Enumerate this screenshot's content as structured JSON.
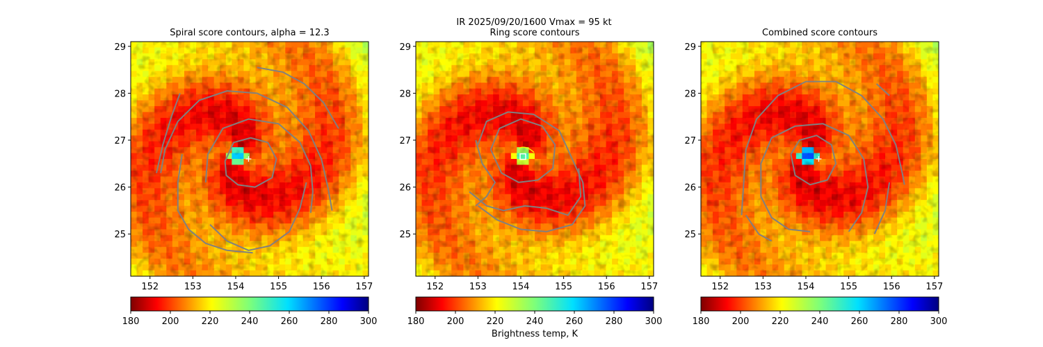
{
  "figure": {
    "suptitle_line1": "IR  2025/09/20/1600    Vmax = 95 kt",
    "colorbar_label": "Brightness temp, K"
  },
  "colors": {
    "contour": "#808080",
    "marker": "#ffffff",
    "ring_inner_contour": "#ffff00"
  },
  "chart_data": [
    {
      "type": "heatmap",
      "title": "Spiral score contours, alpha = 12.3",
      "xlim": [
        151.55,
        157.1
      ],
      "ylim": [
        24.1,
        29.1
      ],
      "xticks": [
        "152",
        "153",
        "154",
        "155",
        "156",
        "157"
      ],
      "yticks": [
        "25",
        "26",
        "27",
        "28",
        "29"
      ],
      "center_marker": {
        "symbol": "+",
        "x": 154.3,
        "y": 26.6
      },
      "eye": {
        "x": 154.05,
        "y": 26.68,
        "min_temp": 275
      },
      "contours": [
        {
          "name": "inner",
          "points": [
            [
              153.75,
              26.55
            ],
            [
              153.95,
              26.95
            ],
            [
              154.35,
              27.05
            ],
            [
              154.75,
              26.95
            ],
            [
              154.95,
              26.6
            ],
            [
              154.85,
              26.2
            ],
            [
              154.45,
              26.0
            ],
            [
              154.05,
              26.05
            ],
            [
              153.78,
              26.25
            ],
            [
              153.75,
              26.55
            ]
          ]
        },
        {
          "name": "middle",
          "points": [
            [
              153.3,
              26.1
            ],
            [
              153.35,
              26.7
            ],
            [
              153.7,
              27.25
            ],
            [
              154.3,
              27.45
            ],
            [
              155.0,
              27.35
            ],
            [
              155.5,
              26.95
            ],
            [
              155.75,
              26.45
            ],
            [
              155.8,
              25.9
            ],
            [
              155.75,
              25.45
            ]
          ]
        },
        {
          "name": "outer",
          "points": [
            [
              153.4,
              25.2
            ],
            [
              153.8,
              24.85
            ],
            [
              154.3,
              24.65
            ],
            [
              154.8,
              24.75
            ],
            [
              155.25,
              25.05
            ],
            [
              155.5,
              25.55
            ],
            [
              155.65,
              26.1
            ]
          ]
        },
        {
          "name": "big-spiral",
          "points": [
            [
              152.25,
              26.3
            ],
            [
              152.35,
              26.8
            ],
            [
              152.65,
              27.4
            ],
            [
              153.15,
              27.85
            ],
            [
              153.8,
              28.05
            ],
            [
              154.5,
              28.0
            ],
            [
              155.2,
              27.7
            ],
            [
              155.7,
              27.2
            ],
            [
              156.0,
              26.6
            ],
            [
              156.15,
              26.0
            ],
            [
              156.25,
              25.5
            ]
          ]
        },
        {
          "name": "left-arm",
          "points": [
            [
              152.75,
              26.7
            ],
            [
              152.65,
              26.1
            ],
            [
              152.65,
              25.5
            ],
            [
              152.9,
              25.1
            ],
            [
              153.3,
              24.8
            ],
            [
              153.8,
              24.65
            ],
            [
              154.4,
              24.6
            ]
          ]
        },
        {
          "name": "top-arm",
          "points": [
            [
              154.5,
              28.55
            ],
            [
              155.1,
              28.45
            ],
            [
              155.6,
              28.2
            ],
            [
              156.05,
              27.8
            ],
            [
              156.4,
              27.25
            ]
          ]
        },
        {
          "name": "far-left",
          "points": [
            [
              152.15,
              26.3
            ],
            [
              152.3,
              26.9
            ],
            [
              152.5,
              27.5
            ],
            [
              152.7,
              28.0
            ]
          ]
        }
      ]
    },
    {
      "type": "heatmap",
      "title": "Ring score contours",
      "xlim": [
        151.55,
        157.1
      ],
      "ylim": [
        24.1,
        29.1
      ],
      "xticks": [
        "152",
        "153",
        "154",
        "155",
        "156",
        "157"
      ],
      "yticks": [
        "25",
        "26",
        "27",
        "28",
        "29"
      ],
      "center_marker": {
        "symbol": "square",
        "x": 154.05,
        "y": 26.65
      },
      "eye": {
        "x": 154.05,
        "y": 26.68,
        "min_temp": 260
      },
      "contours": [
        {
          "name": "ring-core",
          "points": [
            [
              153.3,
              26.8
            ],
            [
              153.5,
              27.25
            ],
            [
              154.0,
              27.45
            ],
            [
              154.5,
              27.3
            ],
            [
              154.8,
              26.9
            ],
            [
              154.75,
              26.4
            ],
            [
              154.4,
              26.15
            ],
            [
              153.95,
              26.1
            ],
            [
              153.55,
              26.3
            ],
            [
              153.3,
              26.8
            ]
          ]
        },
        {
          "name": "ring-band",
          "points": [
            [
              153.0,
              26.9
            ],
            [
              153.2,
              27.4
            ],
            [
              153.7,
              27.6
            ],
            [
              154.3,
              27.55
            ],
            [
              154.9,
              27.2
            ],
            [
              155.2,
              26.6
            ],
            [
              155.45,
              26.1
            ],
            [
              155.5,
              25.6
            ],
            [
              155.2,
              25.2
            ],
            [
              154.6,
              25.05
            ],
            [
              154.0,
              25.1
            ],
            [
              153.45,
              25.3
            ],
            [
              153.0,
              25.6
            ]
          ]
        },
        {
          "name": "ring-south",
          "points": [
            [
              152.8,
              25.9
            ],
            [
              153.2,
              25.6
            ],
            [
              153.6,
              25.5
            ],
            [
              154.1,
              25.6
            ],
            [
              154.6,
              25.55
            ],
            [
              155.1,
              25.4
            ],
            [
              155.4,
              25.8
            ],
            [
              155.35,
              26.4
            ]
          ]
        },
        {
          "name": "ring-west",
          "points": [
            [
              152.95,
              27.0
            ],
            [
              153.1,
              26.5
            ],
            [
              153.4,
              26.1
            ],
            [
              153.2,
              25.8
            ],
            [
              152.95,
              25.6
            ]
          ]
        }
      ]
    },
    {
      "type": "heatmap",
      "title": "Combined score contours",
      "xlim": [
        151.55,
        157.1
      ],
      "ylim": [
        24.1,
        29.1
      ],
      "xticks": [
        "152",
        "153",
        "154",
        "155",
        "156",
        "157"
      ],
      "yticks": [
        "25",
        "26",
        "27",
        "28",
        "29"
      ],
      "center_marker": {
        "symbol": "+",
        "x": 154.3,
        "y": 26.6
      },
      "eye": {
        "x": 154.05,
        "y": 26.68,
        "min_temp": 290
      },
      "contours": [
        {
          "name": "inner",
          "points": [
            [
              153.65,
              26.7
            ],
            [
              153.85,
              27.0
            ],
            [
              154.25,
              27.1
            ],
            [
              154.6,
              26.9
            ],
            [
              154.7,
              26.5
            ],
            [
              154.5,
              26.15
            ],
            [
              154.1,
              26.05
            ],
            [
              153.75,
              26.25
            ],
            [
              153.65,
              26.7
            ]
          ]
        },
        {
          "name": "middle",
          "points": [
            [
              152.95,
              25.8
            ],
            [
              152.95,
              26.5
            ],
            [
              153.2,
              27.05
            ],
            [
              153.75,
              27.3
            ],
            [
              154.4,
              27.35
            ],
            [
              155.0,
              27.1
            ],
            [
              155.35,
              26.6
            ],
            [
              155.45,
              26.0
            ],
            [
              155.3,
              25.45
            ],
            [
              155.0,
              25.05
            ]
          ]
        },
        {
          "name": "middle-bottom",
          "points": [
            [
              152.95,
              25.8
            ],
            [
              153.2,
              25.35
            ],
            [
              153.6,
              25.1
            ],
            [
              154.1,
              25.05
            ]
          ]
        },
        {
          "name": "outer",
          "points": [
            [
              152.5,
              25.4
            ],
            [
              152.55,
              26.1
            ],
            [
              152.6,
              26.8
            ],
            [
              152.85,
              27.45
            ],
            [
              153.35,
              27.95
            ],
            [
              154.0,
              28.25
            ],
            [
              154.7,
              28.25
            ],
            [
              155.3,
              27.95
            ],
            [
              155.8,
              27.45
            ],
            [
              156.1,
              26.9
            ],
            [
              156.25,
              26.3
            ],
            [
              156.3,
              26.05
            ]
          ]
        },
        {
          "name": "outer-south",
          "points": [
            [
              152.6,
              25.4
            ],
            [
              152.9,
              25.0
            ],
            [
              153.2,
              24.85
            ]
          ]
        },
        {
          "name": "east-arc",
          "points": [
            [
              155.6,
              25.0
            ],
            [
              155.85,
              25.5
            ],
            [
              155.95,
              26.1
            ]
          ]
        },
        {
          "name": "ne-stub",
          "points": [
            [
              155.65,
              28.2
            ],
            [
              155.95,
              27.95
            ]
          ]
        }
      ]
    }
  ],
  "colorbar": {
    "type": "colorbar",
    "colormap": "jet_r",
    "range": [
      180,
      300
    ],
    "ticks": [
      "180",
      "200",
      "220",
      "240",
      "260",
      "280",
      "300"
    ]
  }
}
